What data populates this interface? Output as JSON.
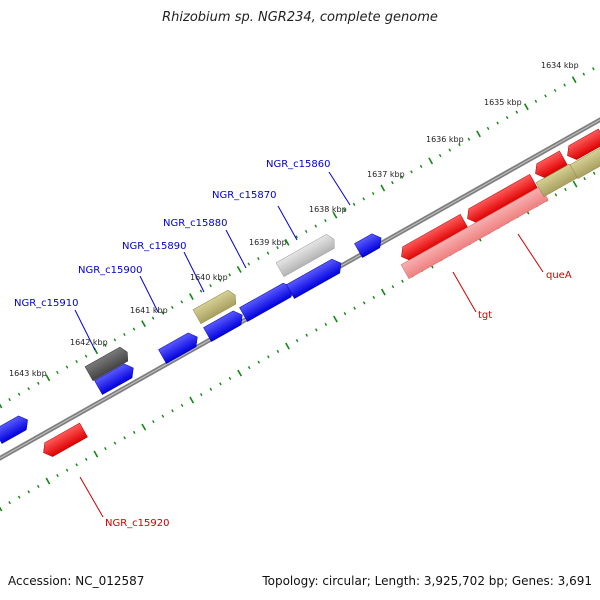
{
  "title": "Rhizobium sp. NGR234, complete genome",
  "footer": {
    "accession_prefix": "Accession: ",
    "accession": "NC_012587",
    "topology_prefix": "Topology: ",
    "topology": "circular",
    "length_prefix": "Length: ",
    "length": "3,925,702 bp",
    "genes_prefix": "Genes: ",
    "genes": "3,691"
  },
  "colors": {
    "forward_gene": "#0000ee",
    "reverse_gene": "#ee0000",
    "reverse_gene_light": "#f08a8a",
    "hypothetical": "#c8c8c8",
    "dark_gene": "#555555",
    "olive_gene": "#bdb76b",
    "backbone": "#808080",
    "tick": "#118811",
    "forward_label": "#0000cc",
    "reverse_label": "#cc0000"
  },
  "kbp_markers": [
    "1634 kbp",
    "1635 kbp",
    "1636 kbp",
    "1637 kbp",
    "1638 kbp",
    "1639 kbp",
    "1640 kbp",
    "1641 kbp",
    "1642 kbp",
    "1643 kbp"
  ],
  "forward_labels": [
    "NGR_c15860",
    "NGR_c15870",
    "NGR_c15880",
    "NGR_c15890",
    "NGR_c15900",
    "NGR_c15910"
  ],
  "reverse_labels": [
    "queA",
    "tgt",
    "NGR_c15920"
  ]
}
